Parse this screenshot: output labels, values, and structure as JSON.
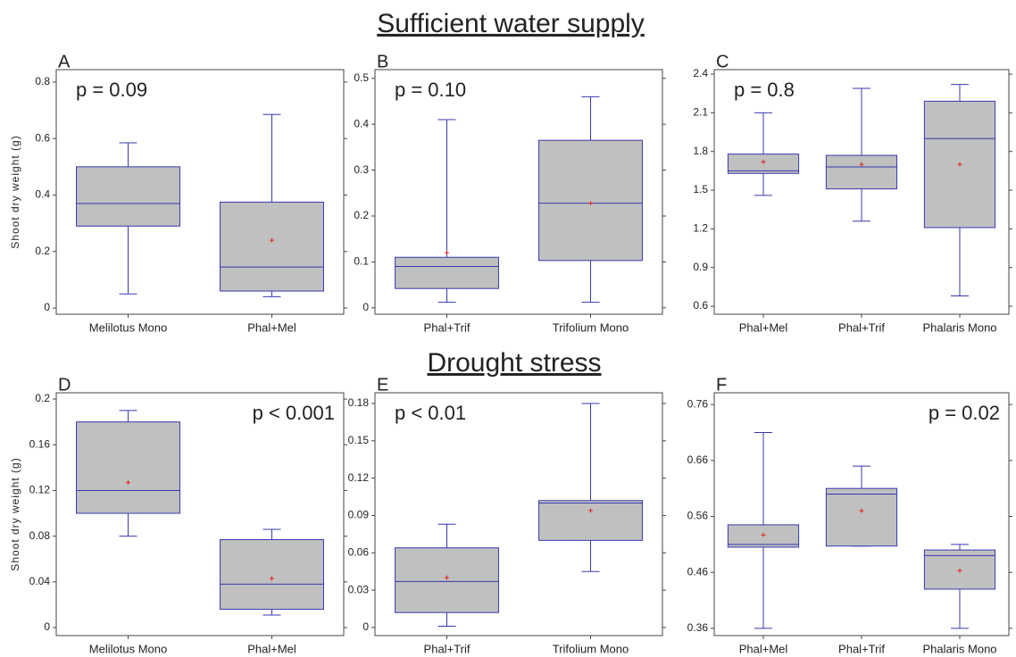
{
  "section_titles": [
    "Sufficient water supply",
    "Drought stress"
  ],
  "chart_data": [
    {
      "type": "box",
      "panel": "A",
      "annotation": "p = 0.09",
      "y_label": "Shoot dry weight (g)",
      "categories": [
        "Melilotus Mono",
        "Phal+Mel"
      ],
      "boxes": [
        {
          "min": 0.05,
          "q1": 0.29,
          "median": 0.37,
          "q3": 0.5,
          "max": 0.585,
          "mean": null
        },
        {
          "min": 0.04,
          "q1": 0.06,
          "median": 0.145,
          "q3": 0.375,
          "max": 0.685,
          "mean": 0.24
        }
      ],
      "ylim": [
        -0.022,
        0.844
      ],
      "yticks": [
        0,
        0.2,
        0.4,
        0.6,
        0.8
      ]
    },
    {
      "type": "box",
      "panel": "B",
      "annotation": "p = 0.10",
      "categories": [
        "Phal+Trif",
        "Trifolium Mono"
      ],
      "boxes": [
        {
          "min": 0.012,
          "q1": 0.042,
          "median": 0.09,
          "q3": 0.11,
          "max": 0.41,
          "mean": 0.12
        },
        {
          "min": 0.012,
          "q1": 0.103,
          "median": 0.228,
          "q3": 0.365,
          "max": 0.46,
          "mean": 0.228
        }
      ],
      "ylim": [
        -0.014,
        0.519
      ],
      "yticks": [
        0,
        0.1,
        0.2,
        0.3,
        0.4,
        0.5
      ]
    },
    {
      "type": "box",
      "panel": "C",
      "annotation": "p = 0.8",
      "categories": [
        "Phal+Mel",
        "Phal+Trif",
        "Phalaris Mono"
      ],
      "boxes": [
        {
          "min": 1.46,
          "q1": 1.63,
          "median": 1.65,
          "q3": 1.78,
          "max": 2.1,
          "mean": 1.72
        },
        {
          "min": 1.26,
          "q1": 1.51,
          "median": 1.68,
          "q3": 1.77,
          "max": 2.29,
          "mean": 1.7
        },
        {
          "min": 0.68,
          "q1": 1.21,
          "median": 1.9,
          "q3": 2.19,
          "max": 2.32,
          "mean": 1.7
        }
      ],
      "ylim": [
        0.538,
        2.435
      ],
      "yticks": [
        0.6,
        0.9,
        1.2,
        1.5,
        1.8,
        2.1,
        2.4
      ]
    },
    {
      "type": "box",
      "panel": "D",
      "annotation": "p < 0.001",
      "y_label": "Shoot dry weight (g)",
      "categories": [
        "Melilotus Mono",
        "Phal+Mel"
      ],
      "boxes": [
        {
          "min": 0.08,
          "q1": 0.1,
          "median": 0.12,
          "q3": 0.18,
          "max": 0.19,
          "mean": 0.127
        },
        {
          "min": 0.011,
          "q1": 0.016,
          "median": 0.038,
          "q3": 0.077,
          "max": 0.086,
          "mean": 0.043
        }
      ],
      "ylim": [
        -0.007,
        0.2055
      ],
      "yticks": [
        0,
        0.04,
        0.08,
        0.12,
        0.16,
        0.2
      ]
    },
    {
      "type": "box",
      "panel": "E",
      "annotation": "p < 0.01",
      "categories": [
        "Phal+Trif",
        "Trifolium Mono"
      ],
      "boxes": [
        {
          "min": 0.001,
          "q1": 0.012,
          "median": 0.037,
          "q3": 0.064,
          "max": 0.083,
          "mean": 0.04
        },
        {
          "min": 0.045,
          "q1": 0.07,
          "median": 0.1,
          "q3": 0.102,
          "max": 0.18,
          "mean": 0.094
        }
      ],
      "ylim": [
        -0.0065,
        0.1886
      ],
      "yticks": [
        0,
        0.03,
        0.06,
        0.09,
        0.12,
        0.15,
        0.18
      ]
    },
    {
      "type": "box",
      "panel": "F",
      "annotation": "p = 0.02",
      "categories": [
        "Phal+Mel",
        "Phal+Trif",
        "Phalaris Mono"
      ],
      "boxes": [
        {
          "min": 0.36,
          "q1": 0.505,
          "median": 0.51,
          "q3": 0.545,
          "max": 0.71,
          "mean": 0.527
        },
        {
          "min": 0.507,
          "q1": 0.507,
          "median": 0.6,
          "q3": 0.61,
          "max": 0.65,
          "mean": 0.57
        },
        {
          "min": 0.36,
          "q1": 0.43,
          "median": 0.49,
          "q3": 0.5,
          "max": 0.51,
          "mean": 0.463
        }
      ],
      "ylim": [
        0.347,
        0.781
      ],
      "yticks": [
        0.36,
        0.46,
        0.56,
        0.66,
        0.76
      ]
    }
  ]
}
